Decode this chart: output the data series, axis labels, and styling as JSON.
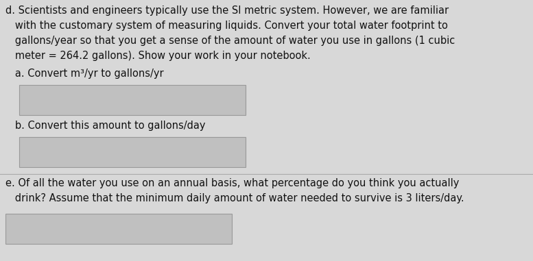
{
  "bg_color": "#d8d8d8",
  "box_bg_color": "#c8c8c8",
  "text_color": "#111111",
  "box_face_color": "#c0c0c0",
  "box_edge_color": "#999999",
  "font_size_main": 10.5,
  "line_d1": "d. Scientists and engineers typically use the SI metric system. However, we are familiar",
  "line_d2": "   with the customary system of measuring liquids. Convert your total water footprint to",
  "line_d3": "   gallons/year so that you get a sense of the amount of water you use in gallons (1 cubic",
  "line_d4": "   meter = 264.2 gallons). Show your work in your notebook.",
  "label_a": "   a. Convert m³/yr to gallons/yr",
  "label_b": "   b. Convert this amount to gallons/day",
  "line_e1": "e. Of all the water you use on an annual basis, what percentage do you think you actually",
  "line_e2": "   drink? Assume that the minimum daily amount of water needed to survive is 3 liters/day."
}
